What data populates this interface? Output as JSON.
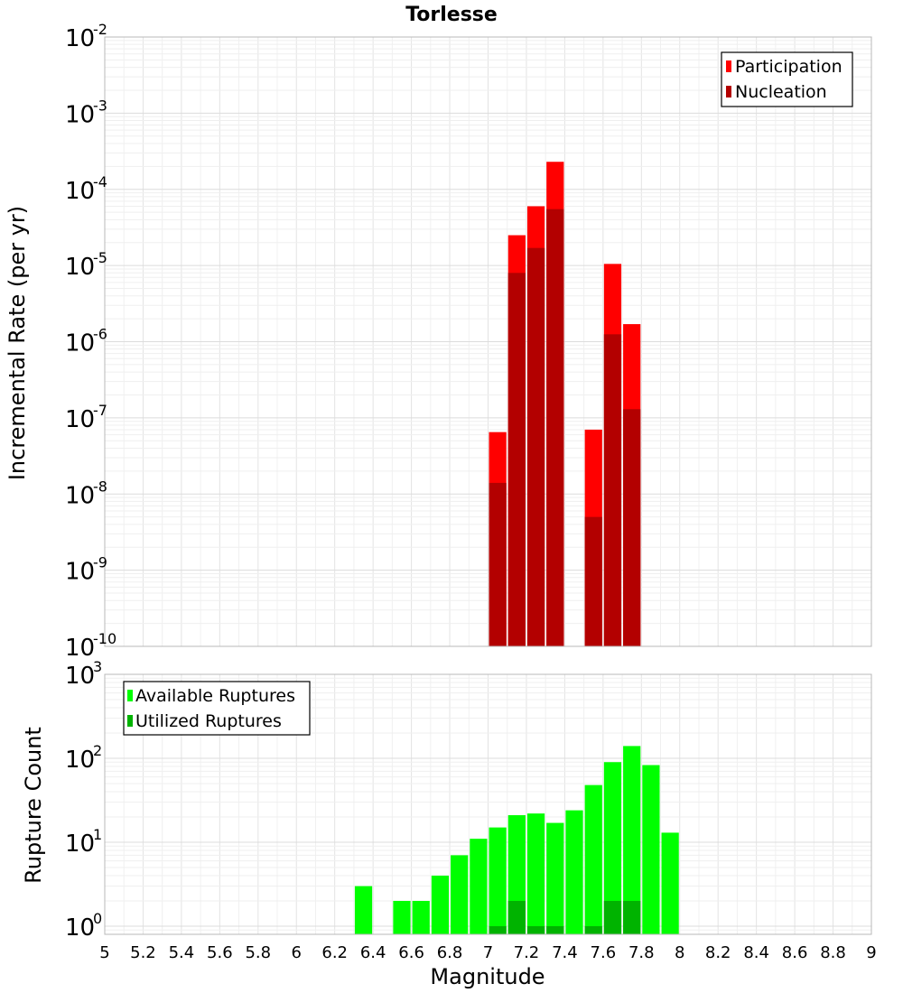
{
  "chart_data": [
    {
      "type": "bar",
      "title": "Torlesse",
      "xlabel": "",
      "ylabel": "Incremental Rate (per yr)",
      "xlim": [
        5,
        9
      ],
      "yscale": "log",
      "ylim": [
        1e-10,
        0.01
      ],
      "y_tick_bases": [
        "10",
        "10",
        "10",
        "10",
        "10",
        "10",
        "10",
        "10",
        "10"
      ],
      "y_tick_exponents": [
        "-10",
        "-9",
        "-8",
        "-7",
        "-6",
        "-5",
        "-4",
        "-3",
        "-2"
      ],
      "bin_width": 0.1,
      "grid": true,
      "legend_position": "top-right",
      "series": [
        {
          "name": "Participation",
          "color": "#ff0000",
          "x": [
            7.05,
            7.15,
            7.25,
            7.35,
            7.55,
            7.65,
            7.75
          ],
          "values": [
            6.5e-08,
            2.5e-05,
            6e-05,
            0.00023,
            7e-08,
            1.05e-05,
            1.7e-06
          ]
        },
        {
          "name": "Nucleation",
          "color": "#b30000",
          "x": [
            7.05,
            7.15,
            7.25,
            7.35,
            7.55,
            7.65,
            7.75
          ],
          "values": [
            1.4e-08,
            8e-06,
            1.7e-05,
            5.5e-05,
            5e-09,
            1.25e-06,
            1.3e-07
          ]
        }
      ]
    },
    {
      "type": "bar",
      "title": "",
      "xlabel": "Magnitude",
      "ylabel": "Rupture Count",
      "xlim": [
        5,
        9
      ],
      "yscale": "log",
      "ylim": [
        0.8,
        1000
      ],
      "y_tick_bases": [
        "10",
        "10",
        "10",
        "10"
      ],
      "y_tick_exponents": [
        "0",
        "1",
        "2",
        "3"
      ],
      "x_tick_labels": [
        "5",
        "5.2",
        "5.4",
        "5.6",
        "5.8",
        "6",
        "6.2",
        "6.4",
        "6.6",
        "6.8",
        "7",
        "7.2",
        "7.4",
        "7.6",
        "7.8",
        "8",
        "8.2",
        "8.4",
        "8.6",
        "8.8",
        "9"
      ],
      "bin_width": 0.1,
      "grid": true,
      "legend_position": "top-left",
      "series": [
        {
          "name": "Available Ruptures",
          "color": "#00ff00",
          "x": [
            6.35,
            6.55,
            6.65,
            6.75,
            6.85,
            6.95,
            7.05,
            7.15,
            7.25,
            7.35,
            7.45,
            7.55,
            7.65,
            7.75,
            7.85,
            7.95
          ],
          "values": [
            3,
            2,
            2,
            4,
            7,
            11,
            15,
            21,
            22,
            17,
            24,
            48,
            90,
            140,
            83,
            13
          ]
        },
        {
          "name": "Utilized Ruptures",
          "color": "#00b300",
          "x": [
            7.05,
            7.15,
            7.25,
            7.35,
            7.55,
            7.65,
            7.75
          ],
          "values": [
            1,
            2,
            1,
            1,
            1,
            2,
            2
          ]
        }
      ]
    }
  ]
}
